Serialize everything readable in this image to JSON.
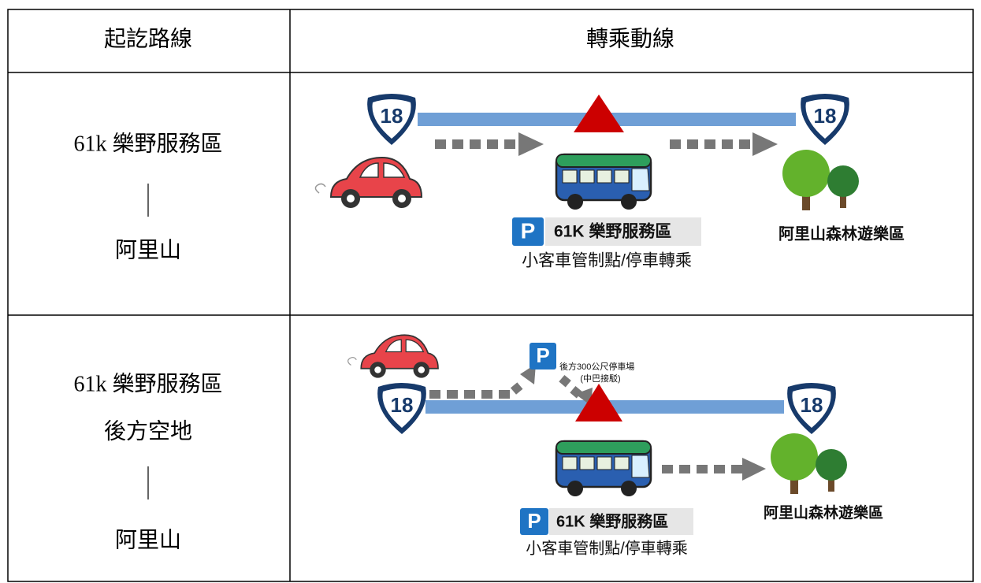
{
  "table": {
    "header": [
      "起訖路線",
      "轉乘動線"
    ],
    "rows": [
      {
        "route": [
          "61k 樂野服務區",
          "阿里山"
        ],
        "diagram": {
          "shields": [
            "18",
            "18"
          ],
          "parking_sign": "P",
          "service_area": "61K 樂野服務區",
          "control_point": "小客車管制點/停車轉乘",
          "destination": "阿里山森林遊樂區"
        }
      },
      {
        "route": [
          "61k 樂野服務區",
          "後方空地",
          "阿里山"
        ],
        "diagram": {
          "shields": [
            "18",
            "18"
          ],
          "rear_parking_sign": "P",
          "rear_parking": [
            "後方300公尺停車場",
            "(中巴接駁)"
          ],
          "parking_sign": "P",
          "service_area": "61K 樂野服務區",
          "control_point": "小客車管制點/停車轉乘",
          "destination": "阿里山森林遊樂區"
        }
      }
    ]
  }
}
